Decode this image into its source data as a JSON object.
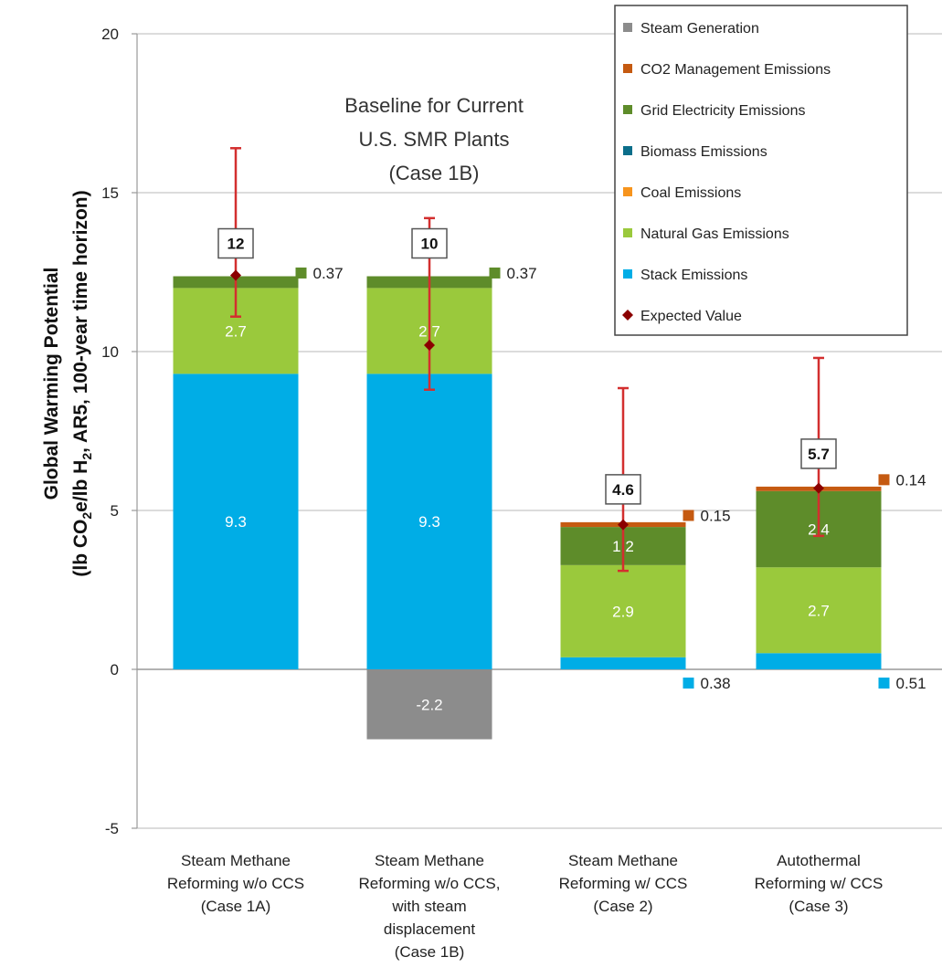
{
  "chart_data": {
    "type": "bar",
    "stacked": true,
    "ylabel_line1": "Global Warming Potential",
    "ylabel_line2_prefix": "(lb CO",
    "ylabel_line2_sub1": "2",
    "ylabel_line2_mid": "e/lb H",
    "ylabel_line2_sub2": "2",
    "ylabel_line2_suffix": ", AR5, 100-year time horizon)",
    "ylim": [
      -5,
      20
    ],
    "yticks": [
      "20",
      "15",
      "10",
      "5",
      "0",
      "-5"
    ],
    "ytick_values": [
      20,
      15,
      10,
      5,
      0,
      -5
    ],
    "grid": true,
    "annotation": [
      "Baseline for Current",
      "U.S. SMR Plants",
      "(Case 1B)"
    ],
    "categories": [
      {
        "lines": [
          "Steam Methane",
          "Reforming w/o CCS",
          "(Case 1A)"
        ]
      },
      {
        "lines": [
          "Steam Methane",
          "Reforming w/o CCS,",
          "with steam",
          "displacement",
          "(Case 1B)"
        ]
      },
      {
        "lines": [
          "Steam Methane",
          "Reforming w/ CCS",
          "(Case 2)"
        ]
      },
      {
        "lines": [
          "Autothermal",
          "Reforming w/ CCS",
          "(Case 3)"
        ]
      }
    ],
    "series": [
      {
        "name": "Stack Emissions",
        "color": "#00ade6",
        "values": [
          9.3,
          9.3,
          0.38,
          0.51
        ]
      },
      {
        "name": "Natural Gas Emissions",
        "color": "#9ac93c",
        "values": [
          2.7,
          2.7,
          2.9,
          2.7
        ]
      },
      {
        "name": "Coal Emissions",
        "color": "#f7941d",
        "values": [
          0,
          0,
          0,
          0
        ]
      },
      {
        "name": "Biomass Emissions",
        "color": "#0b6e8a",
        "values": [
          0,
          0,
          0,
          0
        ]
      },
      {
        "name": "Grid Electricity Emissions",
        "color": "#5e8c2a",
        "values": [
          0.37,
          0.37,
          1.2,
          2.4
        ]
      },
      {
        "name": "CO2 Management Emissions",
        "color": "#c55a11",
        "values": [
          0,
          0,
          0.15,
          0.14
        ]
      },
      {
        "name": "Steam Generation",
        "color": "#8c8c8c",
        "values": [
          0,
          -2.2,
          0,
          0
        ]
      }
    ],
    "legend_order": [
      "Steam Generation",
      "CO2 Management Emissions",
      "Grid Electricity Emissions",
      "Biomass Emissions",
      "Coal Emissions",
      "Natural Gas Emissions",
      "Stack Emissions",
      "Expected Value"
    ],
    "legend_position": "top-right",
    "segment_labels": [
      [
        {
          "series": "Stack Emissions",
          "text": "9.3"
        },
        {
          "series": "Natural Gas Emissions",
          "text": "2.7"
        },
        {
          "series": "Grid Electricity Emissions",
          "text": "0.37",
          "side": true
        }
      ],
      [
        {
          "series": "Stack Emissions",
          "text": "9.3"
        },
        {
          "series": "Natural Gas Emissions",
          "text": "2.7"
        },
        {
          "series": "Grid Electricity Emissions",
          "text": "0.37",
          "side": true
        },
        {
          "series": "Steam Generation",
          "text": "-2.2"
        }
      ],
      [
        {
          "series": "Stack Emissions",
          "text": "0.38",
          "side": true
        },
        {
          "series": "Natural Gas Emissions",
          "text": "2.9"
        },
        {
          "series": "Grid Electricity Emissions",
          "text": "1.2"
        },
        {
          "series": "CO2 Management Emissions",
          "text": "0.15",
          "side": true
        }
      ],
      [
        {
          "series": "Stack Emissions",
          "text": "0.51",
          "side": true
        },
        {
          "series": "Natural Gas Emissions",
          "text": "2.7"
        },
        {
          "series": "Grid Electricity Emissions",
          "text": "2.4"
        },
        {
          "series": "CO2 Management Emissions",
          "text": "0.14",
          "side": true
        }
      ]
    ],
    "expected_values": [
      {
        "value": 12.4,
        "label": "12",
        "err_low": 11.1,
        "err_high": 16.4
      },
      {
        "value": 10.2,
        "label": "10",
        "err_low": 8.8,
        "err_high": 14.2
      },
      {
        "value": 4.55,
        "label": "4.6",
        "err_low": 3.1,
        "err_high": 8.85
      },
      {
        "value": 5.7,
        "label": "5.7",
        "err_low": 4.2,
        "err_high": 9.8
      }
    ],
    "expected_value_name": "Expected Value",
    "expected_value_color": "#8b0000",
    "error_bar_color": "#d32f2f"
  }
}
